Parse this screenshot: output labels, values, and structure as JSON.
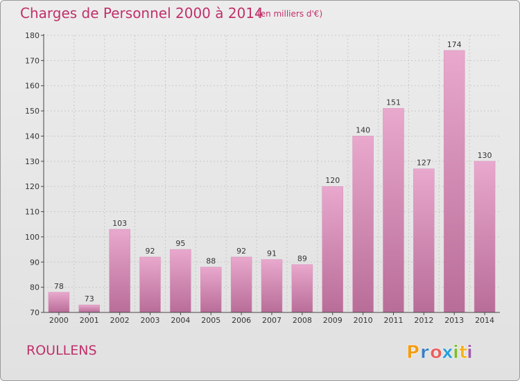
{
  "header": {
    "title": "Charges de Personnel 2000 à 2014",
    "subtitle": "(en milliers d'€)"
  },
  "footer": {
    "commune": "ROULLENS",
    "logo_text": "Proxiti",
    "logo_letters": [
      {
        "ch": "P",
        "color": "#f39c12"
      },
      {
        "ch": "r",
        "color": "#3a7fc1"
      },
      {
        "ch": "o",
        "color": "#e85f5f"
      },
      {
        "ch": "x",
        "color": "#2a9fd8"
      },
      {
        "ch": "i",
        "color": "#7dbb2c"
      },
      {
        "ch": "t",
        "color": "#f5b21b"
      },
      {
        "ch": "i",
        "color": "#9c5ba8"
      }
    ]
  },
  "colors": {
    "accent": "#c0306a",
    "bar_light": "#e9a8cd",
    "bar_dark": "#b86d98",
    "axis": "#444444",
    "grid": "#c8c8c8"
  },
  "chart_data": {
    "type": "bar",
    "title": "Charges de Personnel 2000 à 2014",
    "subtitle": "(en milliers d'€)",
    "categories": [
      "2000",
      "2001",
      "2002",
      "2003",
      "2004",
      "2005",
      "2006",
      "2007",
      "2008",
      "2009",
      "2010",
      "2011",
      "2012",
      "2013",
      "2014"
    ],
    "values": [
      78,
      73,
      103,
      92,
      95,
      88,
      92,
      91,
      89,
      120,
      140,
      151,
      127,
      174,
      130
    ],
    "ylim": [
      70,
      180
    ],
    "yticks": [
      70,
      80,
      90,
      100,
      110,
      120,
      130,
      140,
      150,
      160,
      170,
      180
    ],
    "grid": true,
    "data_labels": true
  }
}
